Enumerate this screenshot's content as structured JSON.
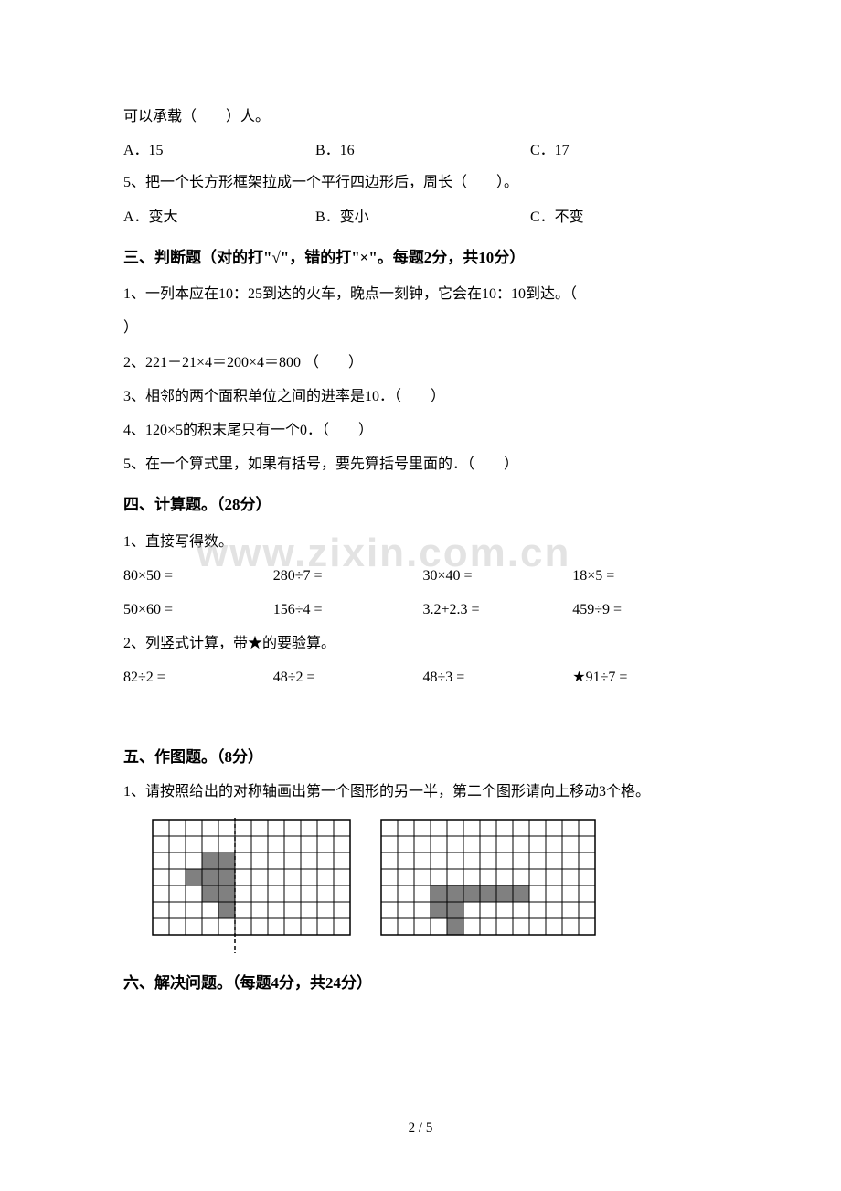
{
  "q4_cont": "可以承载（　　）人。",
  "q4_choices": {
    "a": "A．15",
    "b": "B．16",
    "c": "C．17"
  },
  "q5": "5、把一个长方形框架拉成一个平行四边形后，周长（　　）。",
  "q5_choices": {
    "a": "A．变大",
    "b": "B．变小",
    "c": "C．不变"
  },
  "section3": "三、判断题（对的打\"√\"，错的打\"×\"。每题2分，共10分）",
  "s3_q1": "1、一列本应在10：25到达的火车，晚点一刻钟，它会在10：10到达。（",
  "s3_q1b": "）",
  "s3_q2": "2、221－21×4＝200×4＝800 （　　）",
  "s3_q3": "3、相邻的两个面积单位之间的进率是10．（　　）",
  "s3_q4": "4、120×5的积末尾只有一个0．（　　）",
  "s3_q5": "5、在一个算式里，如果有括号，要先算括号里面的．（　　）",
  "section4": "四、计算题。（28分）",
  "s4_q1": "1、直接写得数。",
  "calc_row1": {
    "a": "80×50 =",
    "b": "280÷7 =",
    "c": "30×40 =",
    "d": "18×5 ="
  },
  "calc_row2": {
    "a": "50×60 =",
    "b": "156÷4 =",
    "c": "3.2+2.3 =",
    "d": "459÷9 ="
  },
  "s4_q2": "2、列竖式计算，带★的要验算。",
  "calc_row3": {
    "a": "82÷2 =",
    "b": "48÷2 =",
    "c": "48÷3 =",
    "d": "★91÷7 ="
  },
  "section5": "五、作图题。（8分）",
  "s5_q1": "1、请按照给出的对称轴画出第一个图形的另一半，第二个图形请向上移动3个格。",
  "section6": "六、解决问题。（每题4分，共24分）",
  "page": "2 / 5",
  "watermark": "www.zixin.com.cn",
  "colors": {
    "text": "#000000",
    "bg": "#ffffff",
    "grid_fill": "#808080",
    "grid_line": "#000000",
    "watermark": "rgba(200,200,200,0.5)"
  },
  "grid1": {
    "cols": 12,
    "rows": 7,
    "cell": 18,
    "fills": [
      [
        2,
        3
      ],
      [
        2,
        4
      ],
      [
        3,
        2
      ],
      [
        3,
        3
      ],
      [
        3,
        4
      ],
      [
        4,
        3
      ],
      [
        4,
        4
      ],
      [
        5,
        4
      ]
    ],
    "axis_col": 5
  },
  "grid2": {
    "cols": 13,
    "rows": 7,
    "cell": 18,
    "fills": [
      [
        4,
        3
      ],
      [
        4,
        4
      ],
      [
        4,
        5
      ],
      [
        4,
        6
      ],
      [
        4,
        7
      ],
      [
        4,
        8
      ],
      [
        5,
        3
      ],
      [
        5,
        4
      ],
      [
        6,
        4
      ]
    ]
  }
}
